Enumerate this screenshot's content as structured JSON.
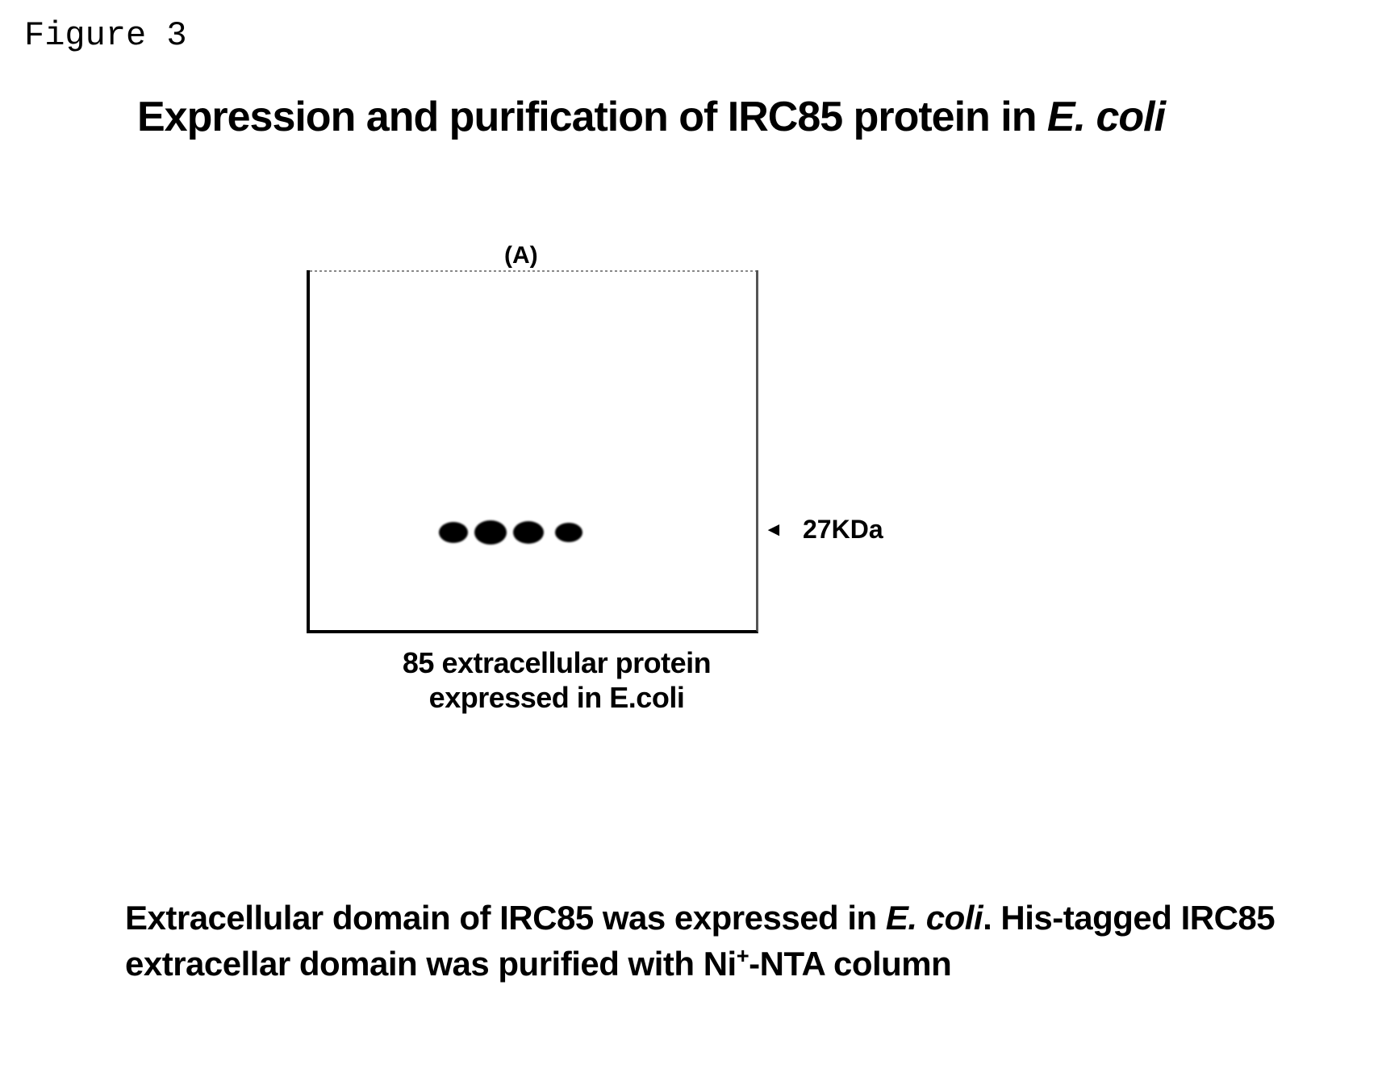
{
  "figure_label": "Figure 3",
  "title_part1": "Expression and purification of IRC85 protein in ",
  "title_italic": "E. coli",
  "panel_label": "(A)",
  "marker_tick": "◄",
  "marker_weight": "27KDa",
  "gel_caption_line1": "85 extracellular protein",
  "gel_caption_line2": "expressed in E.coli",
  "description_part1": "Extracellular domain of IRC85 was expressed in ",
  "description_italic1": "E. coli",
  "description_part2": ". His-tagged IRC85 extracellar domain was purified with Ni",
  "description_sup": "+",
  "description_part3": "-NTA column",
  "gel": {
    "type": "gel_electrophoresis",
    "bands_count": 4,
    "band_color": "#000000",
    "box_border_color": "#000000",
    "background_color": "#ffffff",
    "marker_weight_kda": 27,
    "band_positions_relative": [
      0.58,
      0.62,
      0.6,
      0.55
    ]
  },
  "colors": {
    "text": "#000000",
    "background": "#ffffff",
    "border": "#000000"
  },
  "typography": {
    "figure_label_font": "Courier New",
    "figure_label_size_pt": 32,
    "title_size_pt": 40,
    "title_weight": "bold",
    "caption_size_pt": 28,
    "caption_weight": "bold",
    "description_size_pt": 32,
    "description_weight": "bold",
    "marker_size_pt": 24,
    "marker_weight_style": "bold"
  }
}
